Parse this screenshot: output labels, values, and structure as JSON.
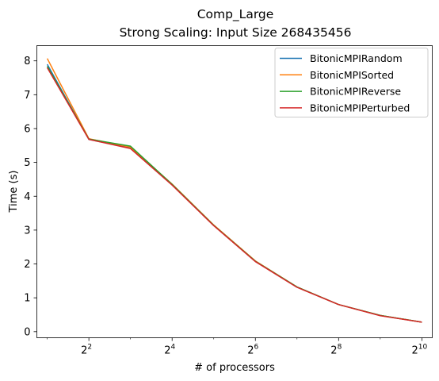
{
  "chart_data": {
    "type": "line",
    "title": "Comp_Large",
    "subtitle": "Strong Scaling: Input Size 268435456",
    "xlabel": "# of processors",
    "ylabel": "Time (s)",
    "x_scale": "log2",
    "x": [
      2,
      4,
      8,
      16,
      32,
      64,
      128,
      256,
      512,
      1024
    ],
    "x_ticks": [
      {
        "value": 4,
        "base": "2",
        "exp": "2"
      },
      {
        "value": 16,
        "base": "2",
        "exp": "4"
      },
      {
        "value": 64,
        "base": "2",
        "exp": "6"
      },
      {
        "value": 256,
        "base": "2",
        "exp": "8"
      },
      {
        "value": 1024,
        "base": "2",
        "exp": "10"
      }
    ],
    "y_ticks": [
      "0",
      "1",
      "2",
      "3",
      "4",
      "5",
      "6",
      "7",
      "8"
    ],
    "ylim": [
      0,
      8
    ],
    "grid": false,
    "legend_position": "top-right",
    "series": [
      {
        "name": "BitonicMPIRandom",
        "color": "#1f77b4",
        "values": [
          7.9,
          5.68,
          5.43,
          4.34,
          3.14,
          2.08,
          1.32,
          0.8,
          0.48,
          0.28
        ]
      },
      {
        "name": "BitonicMPISorted",
        "color": "#ff7f0e",
        "values": [
          8.07,
          5.7,
          5.45,
          4.36,
          3.15,
          2.09,
          1.32,
          0.8,
          0.48,
          0.28
        ]
      },
      {
        "name": "BitonicMPIReverse",
        "color": "#2ca02c",
        "values": [
          7.84,
          5.69,
          5.48,
          4.35,
          3.14,
          2.08,
          1.32,
          0.8,
          0.48,
          0.28
        ]
      },
      {
        "name": "BitonicMPIPerturbed",
        "color": "#d62728",
        "values": [
          7.8,
          5.68,
          5.41,
          4.33,
          3.13,
          2.07,
          1.31,
          0.8,
          0.47,
          0.28
        ]
      }
    ]
  }
}
